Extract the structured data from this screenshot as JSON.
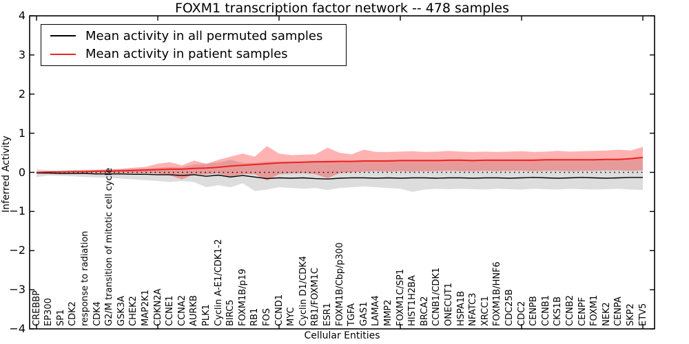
{
  "title": "FOXM1 transcription factor network -- 478 samples",
  "axes": {
    "xlabel": "Cellular Entities",
    "ylabel": "Inferred Activity"
  },
  "legend": {
    "items": [
      {
        "label": "Mean activity in all permuted samples",
        "color": "#000000"
      },
      {
        "label": "Mean activity in patient samples",
        "color": "#ee2222"
      }
    ]
  },
  "chart_data": {
    "type": "line",
    "title": "FOXM1 transcription factor network -- 478 samples",
    "xlabel": "Cellular Entities",
    "ylabel": "Inferred Activity",
    "ylim": [
      -4,
      4
    ],
    "yticks": [
      4,
      3,
      2,
      1,
      0,
      -1,
      -2,
      -3,
      -4
    ],
    "yticklabels": [
      "4",
      "3",
      "2",
      "1",
      "0",
      "−1",
      "−2",
      "−3",
      "−4"
    ],
    "xtick_major_every": 10,
    "grid": false,
    "legend_position": "upper left",
    "reference_line": {
      "y": 0,
      "style": "dotted",
      "color": "#000000"
    },
    "categories": [
      "CREBBP",
      "EP300",
      "SP1",
      "CDK2",
      "response to radiation",
      "CDK4",
      "G2/M transition of mitotic cell cycle",
      "GSK3A",
      "CHEK2",
      "MAP2K1",
      "CDKN2A",
      "CCNE1",
      "CCNA2",
      "AURKB",
      "PLK1",
      "Cyclin A-E1/CDK1-2",
      "BIRC5",
      "FOXM1B/p19",
      "RB1",
      "FOS",
      "CCND1",
      "MYC",
      "Cyclin D1/CDK4",
      "RB1/FOXM1C",
      "ESR1",
      "FOXM1B/Cbp/p300",
      "TGFA",
      "GAS1",
      "LAMA4",
      "MMP2",
      "FOXM1C/SP1",
      "HIST1H2BA",
      "BRCA2",
      "CCNB1/CDK1",
      "ONECUT1",
      "HSPA1B",
      "NFATC3",
      "XRCC1",
      "FOXM1B/HNF6",
      "CDC25B",
      "CDC2",
      "CENPB",
      "CCNB1",
      "CKS1B",
      "CCNB2",
      "CENPF",
      "FOXM1",
      "NEK2",
      "CENPA",
      "SKP2",
      "ETV5"
    ],
    "series": [
      {
        "name": "Mean activity in all permuted samples",
        "color": "#000000",
        "width": 1.4,
        "values": [
          -0.02,
          -0.02,
          -0.03,
          -0.03,
          -0.03,
          -0.04,
          -0.04,
          -0.04,
          -0.05,
          -0.05,
          -0.06,
          -0.06,
          -0.08,
          -0.06,
          -0.1,
          -0.07,
          -0.12,
          -0.08,
          -0.12,
          -0.16,
          -0.14,
          -0.15,
          -0.14,
          -0.16,
          -0.17,
          -0.15,
          -0.14,
          -0.14,
          -0.15,
          -0.14,
          -0.15,
          -0.14,
          -0.14,
          -0.15,
          -0.14,
          -0.14,
          -0.15,
          -0.14,
          -0.14,
          -0.15,
          -0.14,
          -0.13,
          -0.14,
          -0.15,
          -0.14,
          -0.13,
          -0.14,
          -0.15,
          -0.14,
          -0.13,
          -0.13
        ]
      },
      {
        "name": "Mean activity in patient samples",
        "color": "#ee2222",
        "width": 2,
        "values": [
          0.0,
          0.01,
          0.01,
          0.02,
          0.02,
          0.03,
          0.03,
          0.04,
          0.05,
          0.06,
          0.07,
          0.08,
          0.08,
          0.1,
          0.11,
          0.13,
          0.16,
          0.18,
          0.2,
          0.22,
          0.24,
          0.25,
          0.26,
          0.27,
          0.27,
          0.28,
          0.28,
          0.29,
          0.29,
          0.29,
          0.3,
          0.3,
          0.3,
          0.3,
          0.31,
          0.31,
          0.3,
          0.31,
          0.31,
          0.31,
          0.31,
          0.31,
          0.32,
          0.32,
          0.32,
          0.32,
          0.32,
          0.33,
          0.33,
          0.35,
          0.38
        ]
      }
    ],
    "bands": [
      {
        "name": "permuted samples spread",
        "fill": "rgba(128,128,128,0.27)",
        "lower": [
          -0.12,
          -0.08,
          -0.09,
          -0.1,
          -0.12,
          -0.13,
          -0.14,
          -0.16,
          -0.18,
          -0.2,
          -0.22,
          -0.25,
          -0.22,
          -0.25,
          -0.38,
          -0.33,
          -0.38,
          -0.28,
          -0.48,
          -0.44,
          -0.38,
          -0.4,
          -0.42,
          -0.4,
          -0.45,
          -0.4,
          -0.38,
          -0.36,
          -0.38,
          -0.4,
          -0.42,
          -0.5,
          -0.44,
          -0.42,
          -0.43,
          -0.42,
          -0.43,
          -0.44,
          -0.42,
          -0.43,
          -0.44,
          -0.42,
          -0.43,
          -0.44,
          -0.42,
          -0.43,
          -0.44,
          -0.43,
          -0.42,
          -0.44,
          -0.45
        ],
        "upper": [
          0.08,
          0.05,
          0.05,
          0.06,
          0.07,
          0.07,
          0.08,
          0.08,
          0.09,
          0.1,
          0.12,
          0.14,
          0.13,
          0.2,
          0.22,
          0.25,
          0.32,
          0.24,
          0.24,
          0.28,
          0.27,
          0.28,
          0.28,
          0.29,
          0.3,
          0.3,
          0.3,
          0.31,
          0.31,
          0.31,
          0.32,
          0.32,
          0.32,
          0.32,
          0.33,
          0.33,
          0.32,
          0.33,
          0.33,
          0.33,
          0.33,
          0.33,
          0.34,
          0.34,
          0.34,
          0.34,
          0.34,
          0.35,
          0.35,
          0.37,
          0.4
        ]
      },
      {
        "name": "patient samples spread",
        "fill": "rgba(255,0,0,0.30)",
        "lower": [
          -0.01,
          -0.01,
          -0.01,
          -0.01,
          -0.02,
          -0.02,
          -0.02,
          -0.02,
          -0.02,
          -0.02,
          -0.03,
          -0.08,
          -0.18,
          -0.05,
          -0.06,
          -0.03,
          -0.12,
          -0.05,
          -0.05,
          -0.21,
          -0.05,
          -0.03,
          -0.02,
          -0.05,
          -0.15,
          -0.02,
          0.0,
          0.02,
          0.03,
          0.02,
          0.03,
          0.02,
          0.03,
          0.03,
          0.04,
          0.03,
          0.03,
          0.04,
          0.03,
          0.04,
          0.04,
          0.03,
          0.04,
          0.04,
          0.03,
          0.04,
          0.04,
          0.05,
          0.05,
          0.04,
          0.05
        ],
        "upper": [
          0.01,
          0.02,
          0.03,
          0.04,
          0.05,
          0.06,
          0.07,
          0.09,
          0.12,
          0.14,
          0.22,
          0.26,
          0.18,
          0.3,
          0.22,
          0.32,
          0.4,
          0.48,
          0.4,
          0.67,
          0.48,
          0.44,
          0.45,
          0.46,
          0.63,
          0.5,
          0.46,
          0.58,
          0.52,
          0.52,
          0.53,
          0.54,
          0.52,
          0.53,
          0.55,
          0.53,
          0.52,
          0.53,
          0.52,
          0.53,
          0.54,
          0.52,
          0.53,
          0.55,
          0.53,
          0.54,
          0.55,
          0.56,
          0.58,
          0.56,
          0.65
        ]
      }
    ]
  }
}
